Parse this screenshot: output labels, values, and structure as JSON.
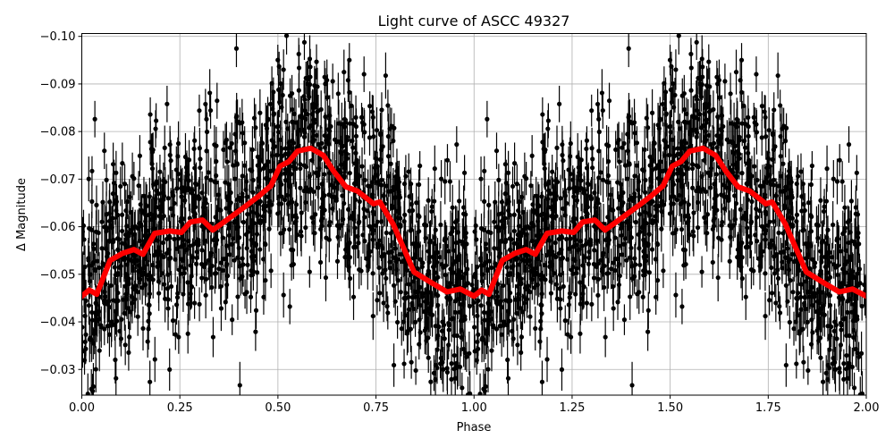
{
  "chart_data": {
    "type": "scatter",
    "title": "Light curve of ASCC 49327",
    "xlabel": "Phase",
    "ylabel": "Δ Magnitude",
    "xlim": [
      0.0,
      2.0
    ],
    "ylim": [
      -0.1006,
      -0.0246
    ],
    "y_inverted": true,
    "grid": true,
    "x_ticks": [
      "0.00",
      "0.25",
      "0.50",
      "0.75",
      "1.00",
      "1.25",
      "1.50",
      "1.75",
      "2.00"
    ],
    "x_tick_values": [
      0,
      0.25,
      0.5,
      0.75,
      1.0,
      1.25,
      1.5,
      1.75,
      2.0
    ],
    "y_ticks": [
      "−0.10",
      "−0.09",
      "−0.08",
      "−0.07",
      "−0.06",
      "−0.05",
      "−0.04",
      "−0.03"
    ],
    "y_tick_values": [
      -0.1,
      -0.09,
      -0.08,
      -0.07,
      -0.06,
      -0.05,
      -0.04,
      -0.03
    ],
    "series": [
      {
        "kind": "errorbar-points",
        "color": "#000000",
        "description_of_spread": "dense observations folded over two cycles, scatter about ±0.012 mag, error bars about ±0.004 mag"
      },
      {
        "kind": "line",
        "color": "#ff0000",
        "period_repeat": 1.0,
        "x": [
          0.0,
          0.019,
          0.038,
          0.072,
          0.104,
          0.133,
          0.156,
          0.186,
          0.224,
          0.254,
          0.277,
          0.308,
          0.334,
          0.361,
          0.391,
          0.422,
          0.452,
          0.482,
          0.505,
          0.528,
          0.55,
          0.584,
          0.616,
          0.641,
          0.673,
          0.703,
          0.744,
          0.76,
          0.794,
          0.847,
          0.892,
          0.931,
          0.965,
          1.0
        ],
        "y": [
          -0.0454,
          -0.0467,
          -0.0458,
          -0.0529,
          -0.0544,
          -0.0552,
          -0.0542,
          -0.0586,
          -0.0591,
          -0.0588,
          -0.061,
          -0.0614,
          -0.0593,
          -0.0609,
          -0.0627,
          -0.0646,
          -0.0665,
          -0.0686,
          -0.0727,
          -0.0737,
          -0.0759,
          -0.0765,
          -0.075,
          -0.0718,
          -0.0684,
          -0.0675,
          -0.0648,
          -0.0652,
          -0.0605,
          -0.0505,
          -0.0482,
          -0.0463,
          -0.0469,
          -0.0454
        ]
      }
    ]
  }
}
